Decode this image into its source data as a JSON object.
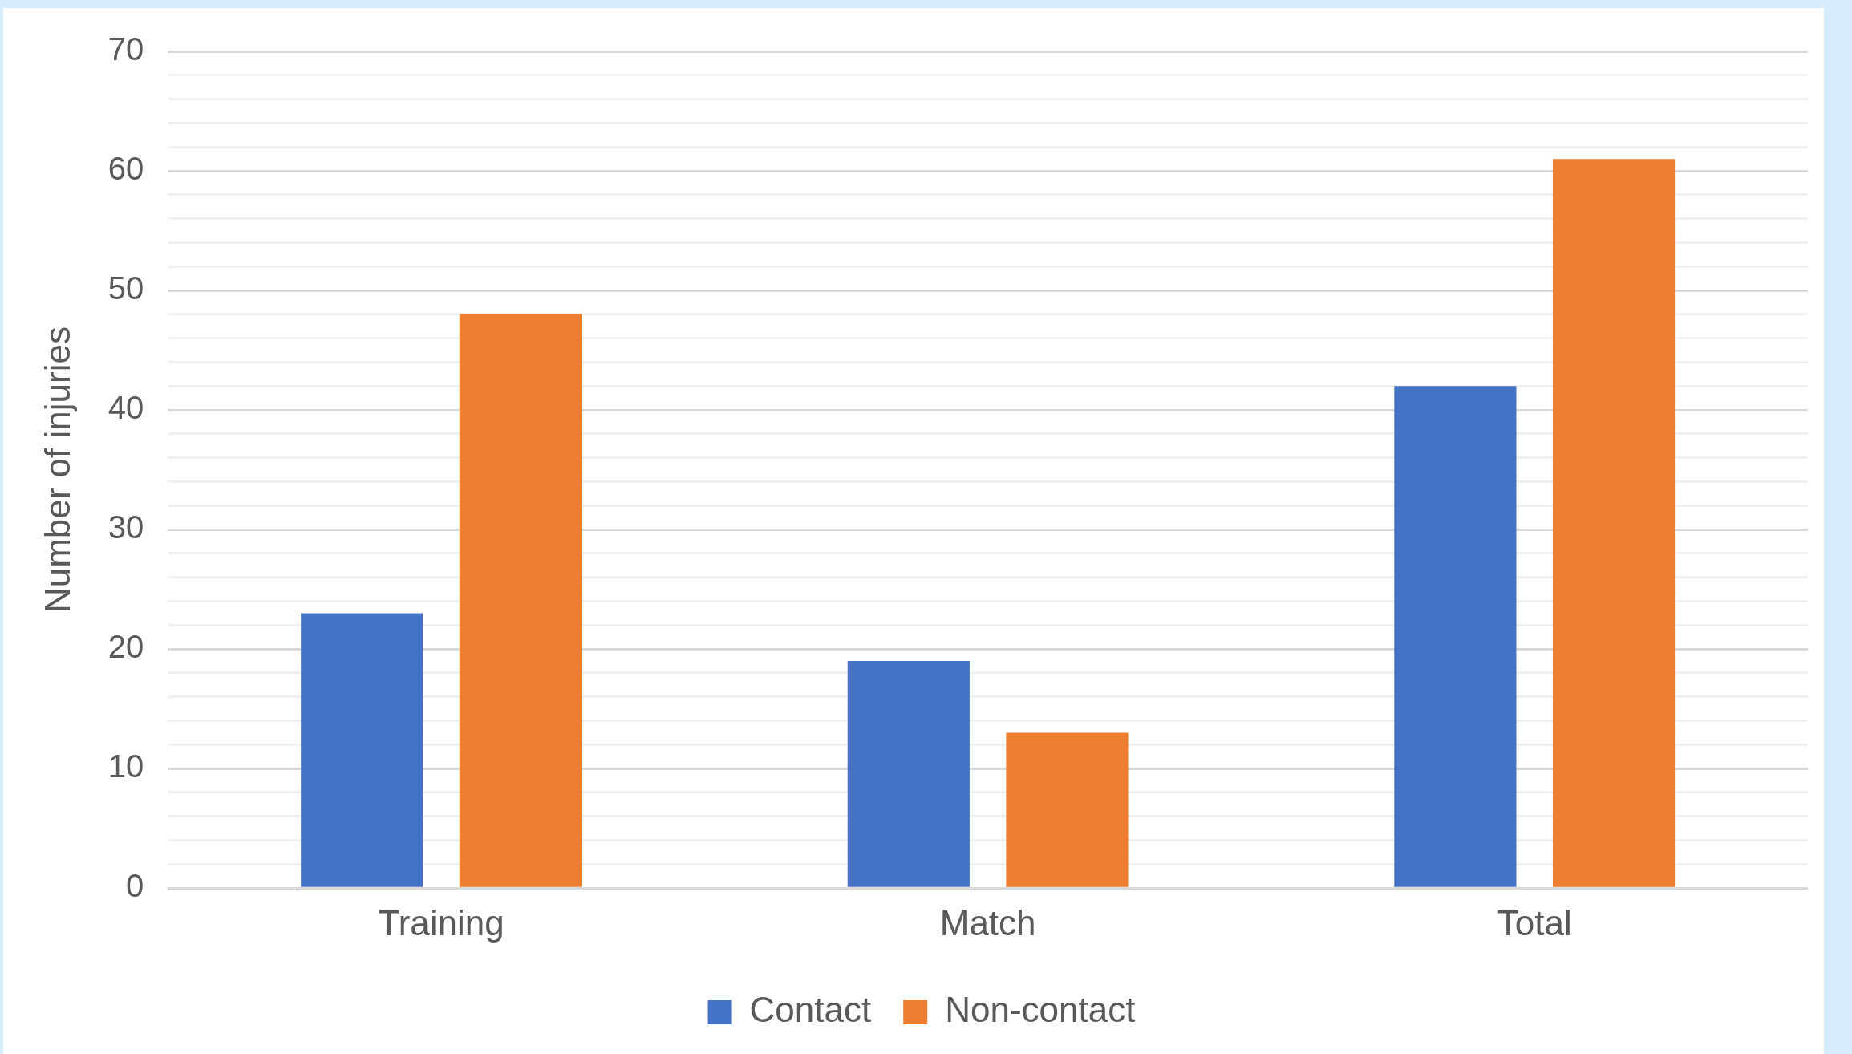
{
  "chart_data": {
    "type": "bar",
    "ylabel": "Number of injuries",
    "categories": [
      "Training",
      "Match",
      "Total"
    ],
    "series": [
      {
        "name": "Contact",
        "color": "#4472c4",
        "values": [
          23,
          19,
          42
        ]
      },
      {
        "name": "Non-contact",
        "color": "#ed7d31",
        "values": [
          48,
          13,
          61
        ]
      }
    ],
    "ylim": [
      0,
      70
    ],
    "yticks": [
      0,
      {
        "value": 2,
        "label": null
      },
      {
        "value": 4,
        "label": null
      },
      {
        "value": 6,
        "label": null
      },
      {
        "value": 8,
        "label": null
      },
      10,
      {
        "value": 12,
        "label": null
      },
      {
        "value": 14,
        "label": null
      },
      {
        "value": 16,
        "label": null
      },
      {
        "value": 18,
        "label": null
      },
      20,
      {
        "value": 22,
        "label": null
      },
      {
        "value": 24,
        "label": null
      },
      {
        "value": 26,
        "label": null
      },
      {
        "value": 28,
        "label": null
      },
      30,
      {
        "value": 32,
        "label": null
      },
      {
        "value": 34,
        "label": null
      },
      {
        "value": 36,
        "label": null
      },
      {
        "value": 38,
        "label": null
      },
      40,
      {
        "value": 42,
        "label": null
      },
      {
        "value": 44,
        "label": null
      },
      {
        "value": 46,
        "label": null
      },
      {
        "value": 48,
        "label": null
      },
      50,
      {
        "value": 52,
        "label": null
      },
      {
        "value": 54,
        "label": null
      },
      {
        "value": 56,
        "label": null
      },
      {
        "value": 58,
        "label": null
      },
      60,
      {
        "value": 62,
        "label": null
      },
      {
        "value": 64,
        "label": null
      },
      {
        "value": 66,
        "label": null
      },
      {
        "value": 68,
        "label": null
      },
      70
    ],
    "grid": "y",
    "legend": "bottom"
  }
}
